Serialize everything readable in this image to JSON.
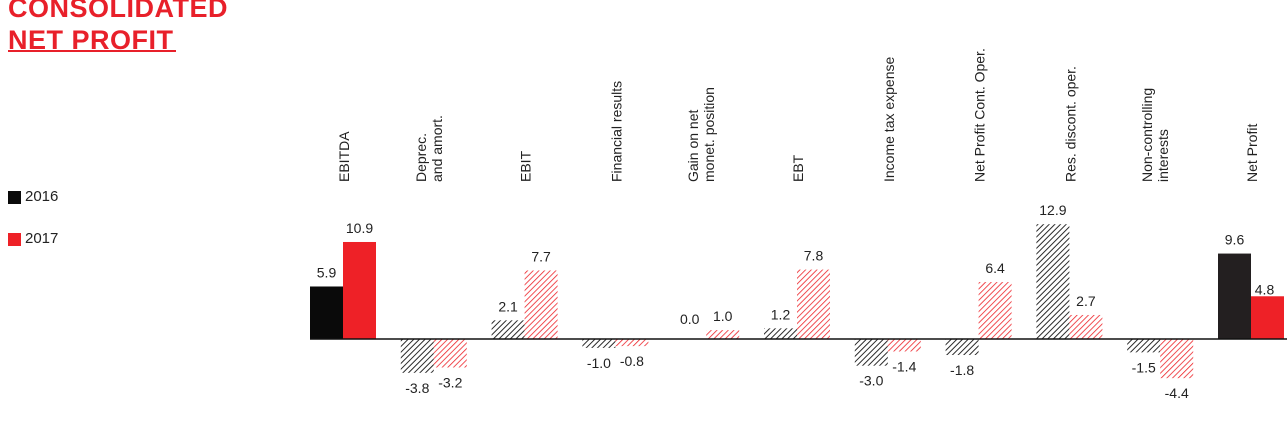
{
  "title": {
    "line1": "CONSOLIDATED",
    "line2": "NET PROFIT"
  },
  "legend": [
    {
      "label": "2016",
      "color": "#0a0a0a"
    },
    {
      "label": "2017",
      "color": "#ee2127"
    }
  ],
  "colors": {
    "black": "#0a0a0a",
    "red": "#ee2127",
    "dark": "#231f20",
    "hatch_black": "#2a2a2a",
    "hatch_red": "#ee2127"
  },
  "chart_data": {
    "type": "bar",
    "title": "CONSOLIDATED NET PROFIT",
    "categories": [
      [
        "EBITDA"
      ],
      [
        "Deprec.",
        "and amort."
      ],
      [
        "EBIT"
      ],
      [
        "Financial results"
      ],
      [
        "Gain on net",
        "monet. position"
      ],
      [
        "EBT"
      ],
      [
        "Income tax expense"
      ],
      [
        "Net Profit Cont. Oper."
      ],
      [
        "Res. discont. oper."
      ],
      [
        "Non-controlling",
        "interests"
      ],
      [
        "Net Profit"
      ]
    ],
    "series": [
      {
        "name": "2016",
        "values": [
          5.9,
          -3.8,
          2.1,
          -1.0,
          0.0,
          1.2,
          -3.0,
          -1.8,
          12.9,
          -1.5,
          9.6
        ],
        "labels": [
          "5.9",
          "-3.8",
          "2.1",
          "-1.0",
          "0.0",
          "1.2",
          "-3.0",
          "-1.8",
          "12.9",
          "-1.5",
          "9.6"
        ]
      },
      {
        "name": "2017",
        "values": [
          10.9,
          -3.2,
          7.7,
          -0.8,
          1.0,
          7.8,
          -1.4,
          6.4,
          2.7,
          -4.4,
          4.8
        ],
        "labels": [
          "10.9",
          "-3.2",
          "7.7",
          "-0.8",
          "1.0",
          "7.8",
          "-1.4",
          "6.4",
          "2.7",
          "-4.4",
          "4.8"
        ]
      }
    ],
    "fill_style": [
      "solid",
      "hatched",
      "hatched",
      "hatched",
      "hatched",
      "hatched",
      "hatched",
      "hatched",
      "hatched",
      "hatched",
      "solid"
    ],
    "grid": false,
    "legend_position": "left"
  }
}
